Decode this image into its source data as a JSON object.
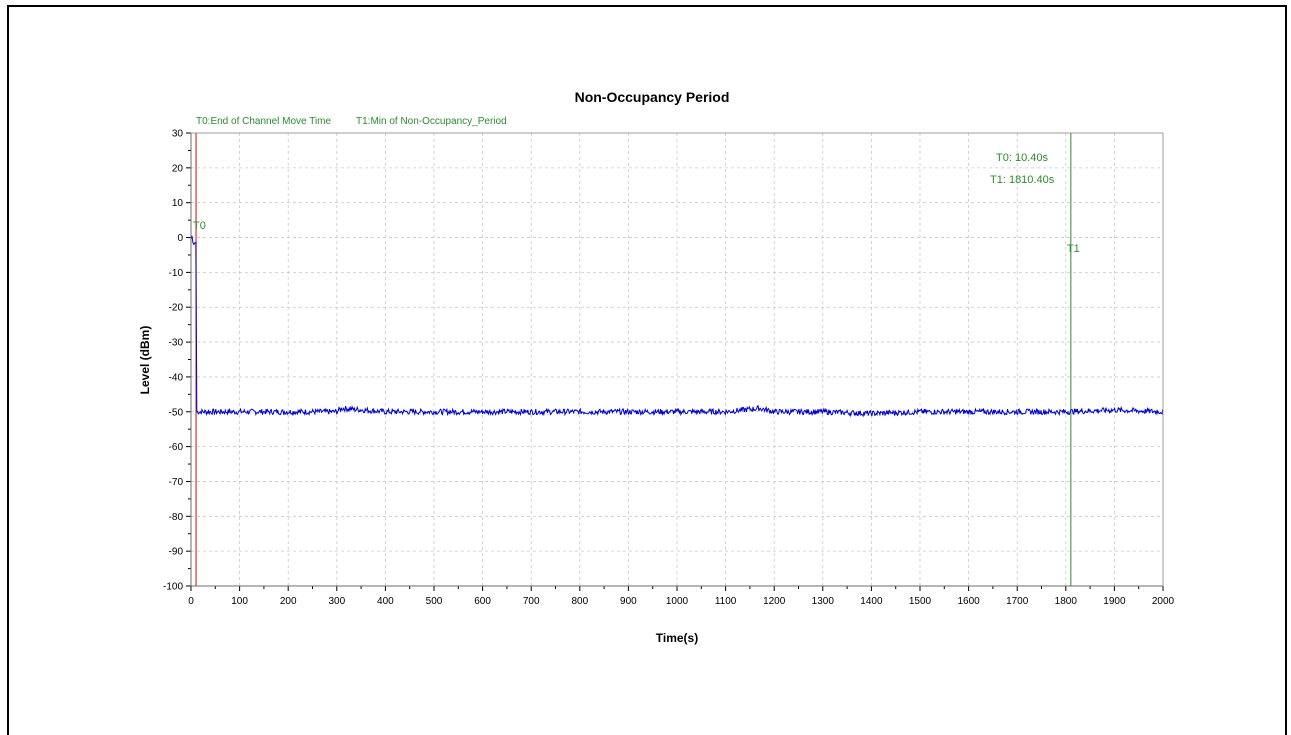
{
  "chart_data": {
    "type": "line",
    "title": "Non-Occupancy Period",
    "xlabel": "Time(s)",
    "ylabel": "Level (dBm)",
    "xlim": [
      0,
      2000
    ],
    "ylim": [
      -100,
      30
    ],
    "x_ticks": [
      0,
      100,
      200,
      300,
      400,
      500,
      600,
      700,
      800,
      900,
      1000,
      1100,
      1200,
      1300,
      1400,
      1500,
      1600,
      1700,
      1800,
      1900,
      2000
    ],
    "y_ticks": [
      30,
      20,
      10,
      0,
      -10,
      -20,
      -30,
      -40,
      -50,
      -60,
      -70,
      -80,
      -90,
      -100
    ],
    "grid": true,
    "legend": [
      {
        "label": "T0:End of Channel Move Time",
        "color": "#2e8b2e"
      },
      {
        "label": "T1:Min of Non-Occupancy_Period",
        "color": "#2e8b2e"
      }
    ],
    "series": [
      {
        "color": "#0000cc",
        "x": [
          0,
          2,
          4,
          6,
          8,
          10,
          12,
          50,
          100,
          200,
          300,
          310,
          400,
          500,
          600,
          700,
          800,
          900,
          1000,
          1100,
          1170,
          1200,
          1300,
          1400,
          1500,
          1600,
          1700,
          1800,
          1900,
          2000
        ],
        "y": [
          -0.5,
          0.5,
          -1.5,
          -2,
          -1.5,
          -1.5,
          -50,
          -50,
          -50,
          -50,
          -50,
          -49,
          -50,
          -50,
          -50,
          -50,
          -50,
          -50,
          -50,
          -50,
          -49,
          -50,
          -50,
          -50.5,
          -50,
          -50,
          -50,
          -50,
          -49.5,
          -50
        ]
      }
    ],
    "markers": [
      {
        "label": "T0",
        "x": 10.4,
        "color": "#e03030"
      },
      {
        "label": "T1",
        "x": 1810.4,
        "color": "#2e8b2e"
      }
    ],
    "annotations": [
      "T0: 10.40s",
      "T1: 1810.40s"
    ]
  }
}
